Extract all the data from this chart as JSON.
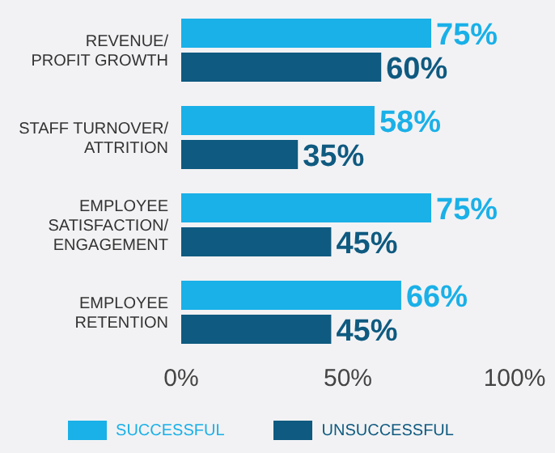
{
  "chart_data": {
    "type": "bar",
    "orientation": "horizontal",
    "categories": [
      "REVENUE/ PROFIT GROWTH",
      "STAFF TURNOVER/ ATTRITION",
      "EMPLOYEE SATISFACTION/ ENGAGEMENT",
      "EMPLOYEE RETENTION"
    ],
    "series": [
      {
        "name": "SUCCESSFUL",
        "color": "#1ab0e8",
        "values": [
          75,
          58,
          75,
          66
        ],
        "value_labels": [
          "75%",
          "58%",
          "75%",
          "66%"
        ]
      },
      {
        "name": "UNSUCCESSFUL",
        "color": "#0f5a80",
        "values": [
          60,
          35,
          45,
          45
        ],
        "value_labels": [
          "60%",
          "35%",
          "45%",
          "45%"
        ]
      }
    ],
    "xlim": [
      0,
      100
    ],
    "xticks": [
      {
        "value": 0,
        "label": "0%"
      },
      {
        "value": 50,
        "label": "50%"
      },
      {
        "value": 100,
        "label": "100%"
      }
    ],
    "grid": false,
    "legend": "bottom"
  }
}
